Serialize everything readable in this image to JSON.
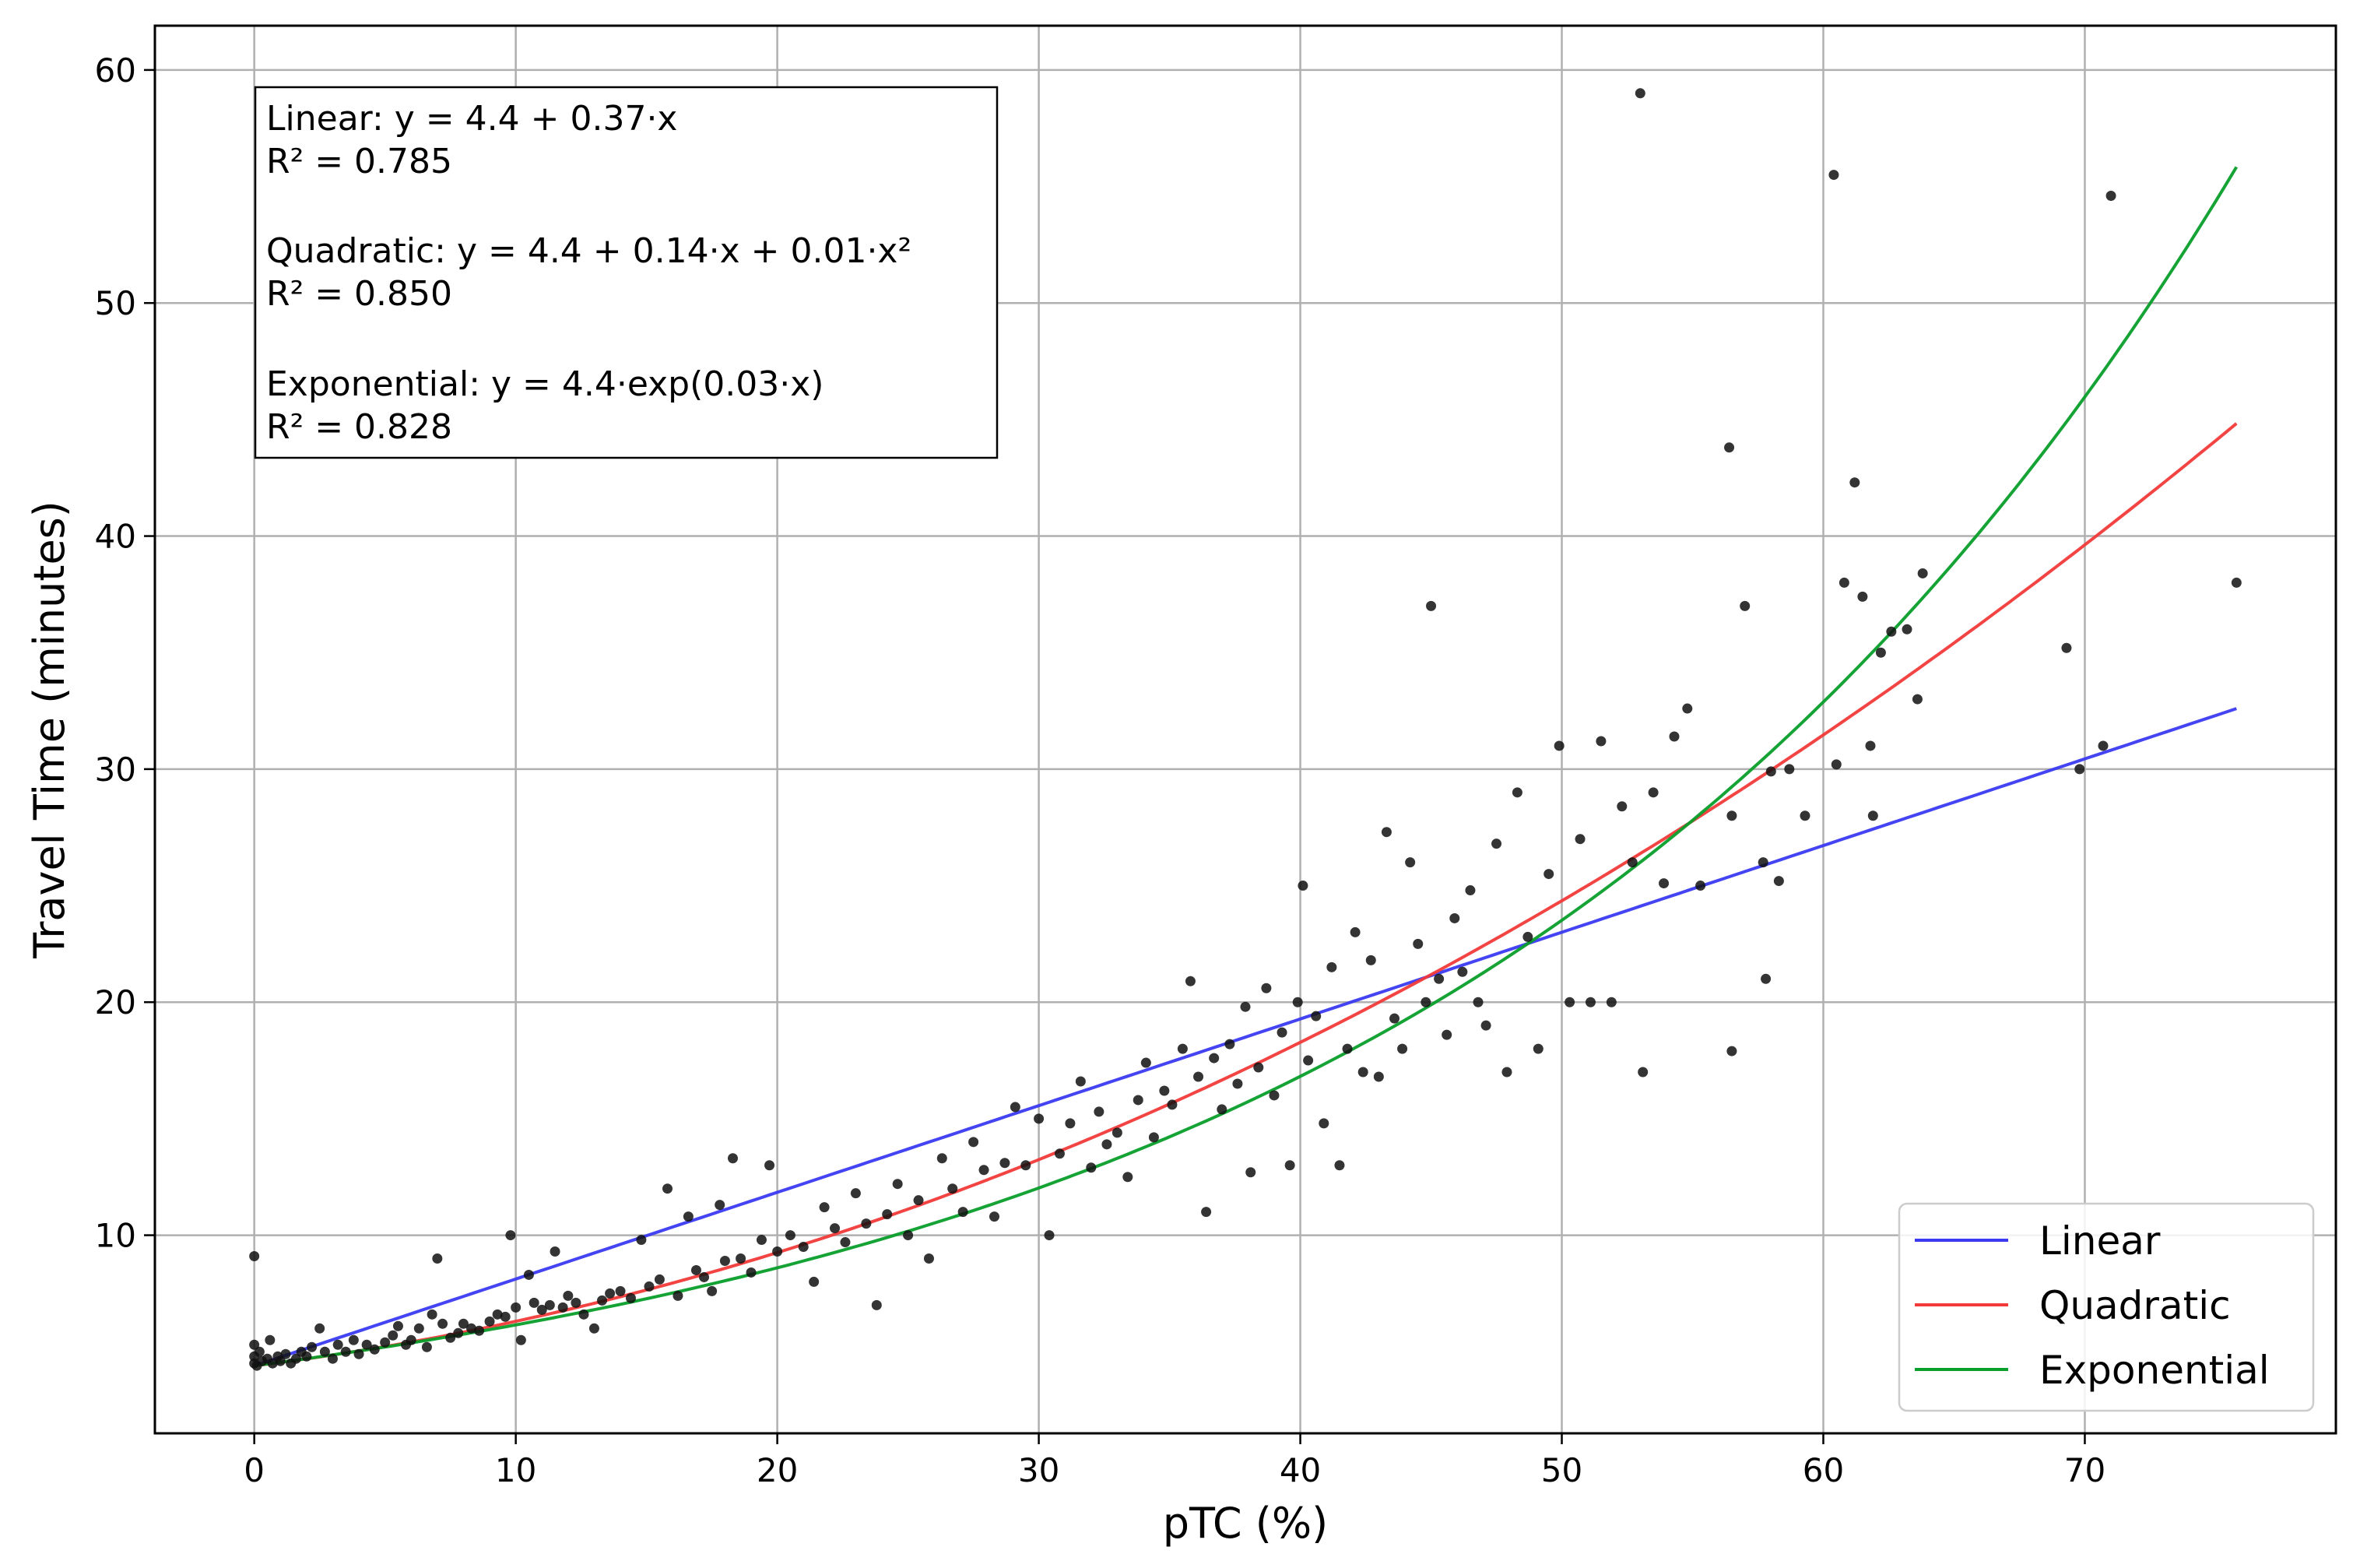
{
  "chart_data": {
    "type": "scatter",
    "xlabel": "pTC (%)",
    "ylabel": "Travel Time (minutes)",
    "xlim": [
      -3.8,
      79.6
    ],
    "ylim": [
      1.5,
      61.9
    ],
    "x_ticks": [
      0,
      10,
      20,
      30,
      40,
      50,
      60,
      70
    ],
    "y_ticks": [
      10,
      20,
      30,
      40,
      50,
      60
    ],
    "grid": true,
    "legend_position": "bottom-right",
    "annotation_lines": [
      "Linear: y = 4.4 + 0.37·x",
      "R² = 0.785",
      "",
      "Quadratic: y = 4.4 + 0.14·x + 0.01·x²",
      "R² = 0.850",
      "",
      "Exponential: y = 4.4·exp(0.03·x)",
      "R² = 0.828"
    ],
    "fits": [
      {
        "name": "Linear",
        "color": "#3a3af2",
        "kind": "linear",
        "x_range": [
          0,
          75.8
        ],
        "y_start": 4.4,
        "y_end": 32.6
      },
      {
        "name": "Quadratic",
        "color": "#f23a3a",
        "kind": "quadratic",
        "x_range": [
          0,
          75.8
        ],
        "y_start": 4.4,
        "y_end": 44.8
      },
      {
        "name": "Exponential",
        "color": "#0a9e2a",
        "kind": "exponential",
        "x_range": [
          0,
          75.8
        ],
        "y_start": 4.4,
        "y_end": 55.9
      }
    ],
    "scatter": {
      "color": "#111111",
      "points": [
        [
          0,
          9.1
        ],
        [
          0,
          5.3
        ],
        [
          0,
          4.8
        ],
        [
          0,
          4.5
        ],
        [
          0.1,
          4.4
        ],
        [
          0.2,
          5.0
        ],
        [
          0.3,
          4.6
        ],
        [
          0.5,
          4.7
        ],
        [
          0.6,
          5.5
        ],
        [
          0.7,
          4.5
        ],
        [
          0.9,
          4.8
        ],
        [
          1.0,
          4.6
        ],
        [
          1.2,
          4.9
        ],
        [
          1.4,
          4.5
        ],
        [
          1.6,
          4.7
        ],
        [
          1.8,
          5.0
        ],
        [
          2.0,
          4.8
        ],
        [
          2.2,
          5.2
        ],
        [
          2.5,
          6.0
        ],
        [
          2.7,
          5.0
        ],
        [
          3.0,
          4.7
        ],
        [
          3.2,
          5.3
        ],
        [
          3.5,
          5.0
        ],
        [
          3.8,
          5.5
        ],
        [
          4.0,
          4.9
        ],
        [
          4.3,
          5.3
        ],
        [
          4.6,
          5.1
        ],
        [
          5.0,
          5.4
        ],
        [
          5.3,
          5.7
        ],
        [
          5.5,
          6.1
        ],
        [
          5.8,
          5.3
        ],
        [
          6.0,
          5.5
        ],
        [
          6.3,
          6.0
        ],
        [
          6.6,
          5.2
        ],
        [
          6.8,
          6.6
        ],
        [
          7.0,
          9.0
        ],
        [
          7.2,
          6.2
        ],
        [
          7.5,
          5.6
        ],
        [
          7.8,
          5.8
        ],
        [
          8.0,
          6.2
        ],
        [
          8.3,
          6.0
        ],
        [
          8.6,
          5.9
        ],
        [
          9.0,
          6.3
        ],
        [
          9.3,
          6.6
        ],
        [
          9.6,
          6.5
        ],
        [
          9.8,
          10.0
        ],
        [
          10.0,
          6.9
        ],
        [
          10.2,
          5.5
        ],
        [
          10.5,
          8.3
        ],
        [
          10.7,
          7.1
        ],
        [
          11.0,
          6.8
        ],
        [
          11.3,
          7.0
        ],
        [
          11.5,
          9.3
        ],
        [
          11.8,
          6.9
        ],
        [
          12.0,
          7.4
        ],
        [
          12.3,
          7.1
        ],
        [
          12.6,
          6.6
        ],
        [
          13.0,
          6.0
        ],
        [
          13.3,
          7.2
        ],
        [
          13.6,
          7.5
        ],
        [
          14.0,
          7.6
        ],
        [
          14.4,
          7.3
        ],
        [
          14.8,
          9.8
        ],
        [
          15.1,
          7.8
        ],
        [
          15.5,
          8.1
        ],
        [
          15.8,
          12.0
        ],
        [
          16.2,
          7.4
        ],
        [
          16.6,
          10.8
        ],
        [
          16.9,
          8.5
        ],
        [
          17.2,
          8.2
        ],
        [
          17.5,
          7.6
        ],
        [
          17.8,
          11.3
        ],
        [
          18.0,
          8.9
        ],
        [
          18.3,
          13.3
        ],
        [
          18.6,
          9.0
        ],
        [
          19.0,
          8.4
        ],
        [
          19.4,
          9.8
        ],
        [
          19.7,
          13.0
        ],
        [
          20.0,
          9.3
        ],
        [
          20.5,
          10.0
        ],
        [
          21.0,
          9.5
        ],
        [
          21.4,
          8.0
        ],
        [
          21.8,
          11.2
        ],
        [
          22.2,
          10.3
        ],
        [
          22.6,
          9.7
        ],
        [
          23.0,
          11.8
        ],
        [
          23.4,
          10.5
        ],
        [
          23.8,
          7.0
        ],
        [
          24.2,
          10.9
        ],
        [
          24.6,
          12.2
        ],
        [
          25.0,
          10.0
        ],
        [
          25.4,
          11.5
        ],
        [
          25.8,
          9.0
        ],
        [
          26.3,
          13.3
        ],
        [
          26.7,
          12.0
        ],
        [
          27.1,
          11.0
        ],
        [
          27.5,
          14.0
        ],
        [
          27.9,
          12.8
        ],
        [
          28.3,
          10.8
        ],
        [
          28.7,
          13.1
        ],
        [
          29.1,
          15.5
        ],
        [
          29.5,
          13.0
        ],
        [
          30.0,
          15.0
        ],
        [
          30.4,
          10.0
        ],
        [
          30.8,
          13.5
        ],
        [
          31.2,
          14.8
        ],
        [
          31.6,
          16.6
        ],
        [
          32.0,
          12.9
        ],
        [
          32.3,
          15.3
        ],
        [
          32.6,
          13.9
        ],
        [
          33.0,
          14.4
        ],
        [
          33.4,
          12.5
        ],
        [
          33.8,
          15.8
        ],
        [
          34.1,
          17.4
        ],
        [
          34.4,
          14.2
        ],
        [
          34.8,
          16.2
        ],
        [
          35.1,
          15.6
        ],
        [
          35.5,
          18.0
        ],
        [
          35.8,
          20.9
        ],
        [
          36.1,
          16.8
        ],
        [
          36.4,
          11.0
        ],
        [
          36.7,
          17.6
        ],
        [
          37.0,
          15.4
        ],
        [
          37.3,
          18.2
        ],
        [
          37.6,
          16.5
        ],
        [
          37.9,
          19.8
        ],
        [
          38.1,
          12.7
        ],
        [
          38.4,
          17.2
        ],
        [
          38.7,
          20.6
        ],
        [
          39.0,
          16.0
        ],
        [
          39.3,
          18.7
        ],
        [
          39.6,
          13.0
        ],
        [
          39.9,
          20.0
        ],
        [
          40.1,
          25.0
        ],
        [
          40.3,
          17.5
        ],
        [
          40.6,
          19.4
        ],
        [
          40.9,
          14.8
        ],
        [
          41.2,
          21.5
        ],
        [
          41.5,
          13.0
        ],
        [
          41.8,
          18.0
        ],
        [
          42.1,
          23.0
        ],
        [
          42.4,
          17.0
        ],
        [
          42.7,
          21.8
        ],
        [
          43.0,
          16.8
        ],
        [
          43.3,
          27.3
        ],
        [
          43.6,
          19.3
        ],
        [
          43.9,
          18.0
        ],
        [
          44.2,
          26.0
        ],
        [
          44.5,
          22.5
        ],
        [
          44.8,
          20.0
        ],
        [
          45.0,
          37.0
        ],
        [
          45.3,
          21.0
        ],
        [
          45.6,
          18.6
        ],
        [
          45.9,
          23.6
        ],
        [
          46.2,
          21.3
        ],
        [
          46.5,
          24.8
        ],
        [
          46.8,
          20.0
        ],
        [
          47.1,
          19.0
        ],
        [
          47.5,
          26.8
        ],
        [
          47.9,
          17.0
        ],
        [
          48.3,
          29.0
        ],
        [
          48.7,
          22.8
        ],
        [
          49.1,
          18.0
        ],
        [
          49.5,
          25.5
        ],
        [
          49.9,
          31.0
        ],
        [
          50.3,
          20.0
        ],
        [
          50.7,
          27.0
        ],
        [
          51.1,
          20.0
        ],
        [
          51.5,
          31.2
        ],
        [
          51.9,
          20.0
        ],
        [
          52.3,
          28.4
        ],
        [
          52.7,
          26.0
        ],
        [
          53.0,
          59.0
        ],
        [
          53.1,
          17.0
        ],
        [
          53.5,
          29.0
        ],
        [
          53.9,
          25.1
        ],
        [
          54.3,
          31.4
        ],
        [
          54.8,
          32.6
        ],
        [
          55.3,
          25.0
        ],
        [
          56.4,
          43.8
        ],
        [
          56.5,
          28.0
        ],
        [
          56.5,
          17.9
        ],
        [
          57.0,
          37.0
        ],
        [
          57.7,
          26.0
        ],
        [
          57.8,
          21.0
        ],
        [
          58.0,
          29.9
        ],
        [
          58.3,
          25.2
        ],
        [
          58.7,
          30.0
        ],
        [
          59.3,
          28.0
        ],
        [
          60.4,
          55.5
        ],
        [
          60.5,
          30.2
        ],
        [
          60.8,
          38.0
        ],
        [
          61.2,
          42.3
        ],
        [
          61.5,
          37.4
        ],
        [
          61.8,
          31.0
        ],
        [
          61.9,
          28.0
        ],
        [
          62.2,
          35.0
        ],
        [
          62.6,
          35.9
        ],
        [
          63.2,
          36.0
        ],
        [
          63.6,
          33.0
        ],
        [
          63.8,
          38.4
        ],
        [
          69.3,
          35.2
        ],
        [
          69.8,
          30.0
        ],
        [
          70.7,
          31.0
        ],
        [
          71.0,
          54.6
        ],
        [
          75.8,
          38.0
        ]
      ]
    }
  }
}
